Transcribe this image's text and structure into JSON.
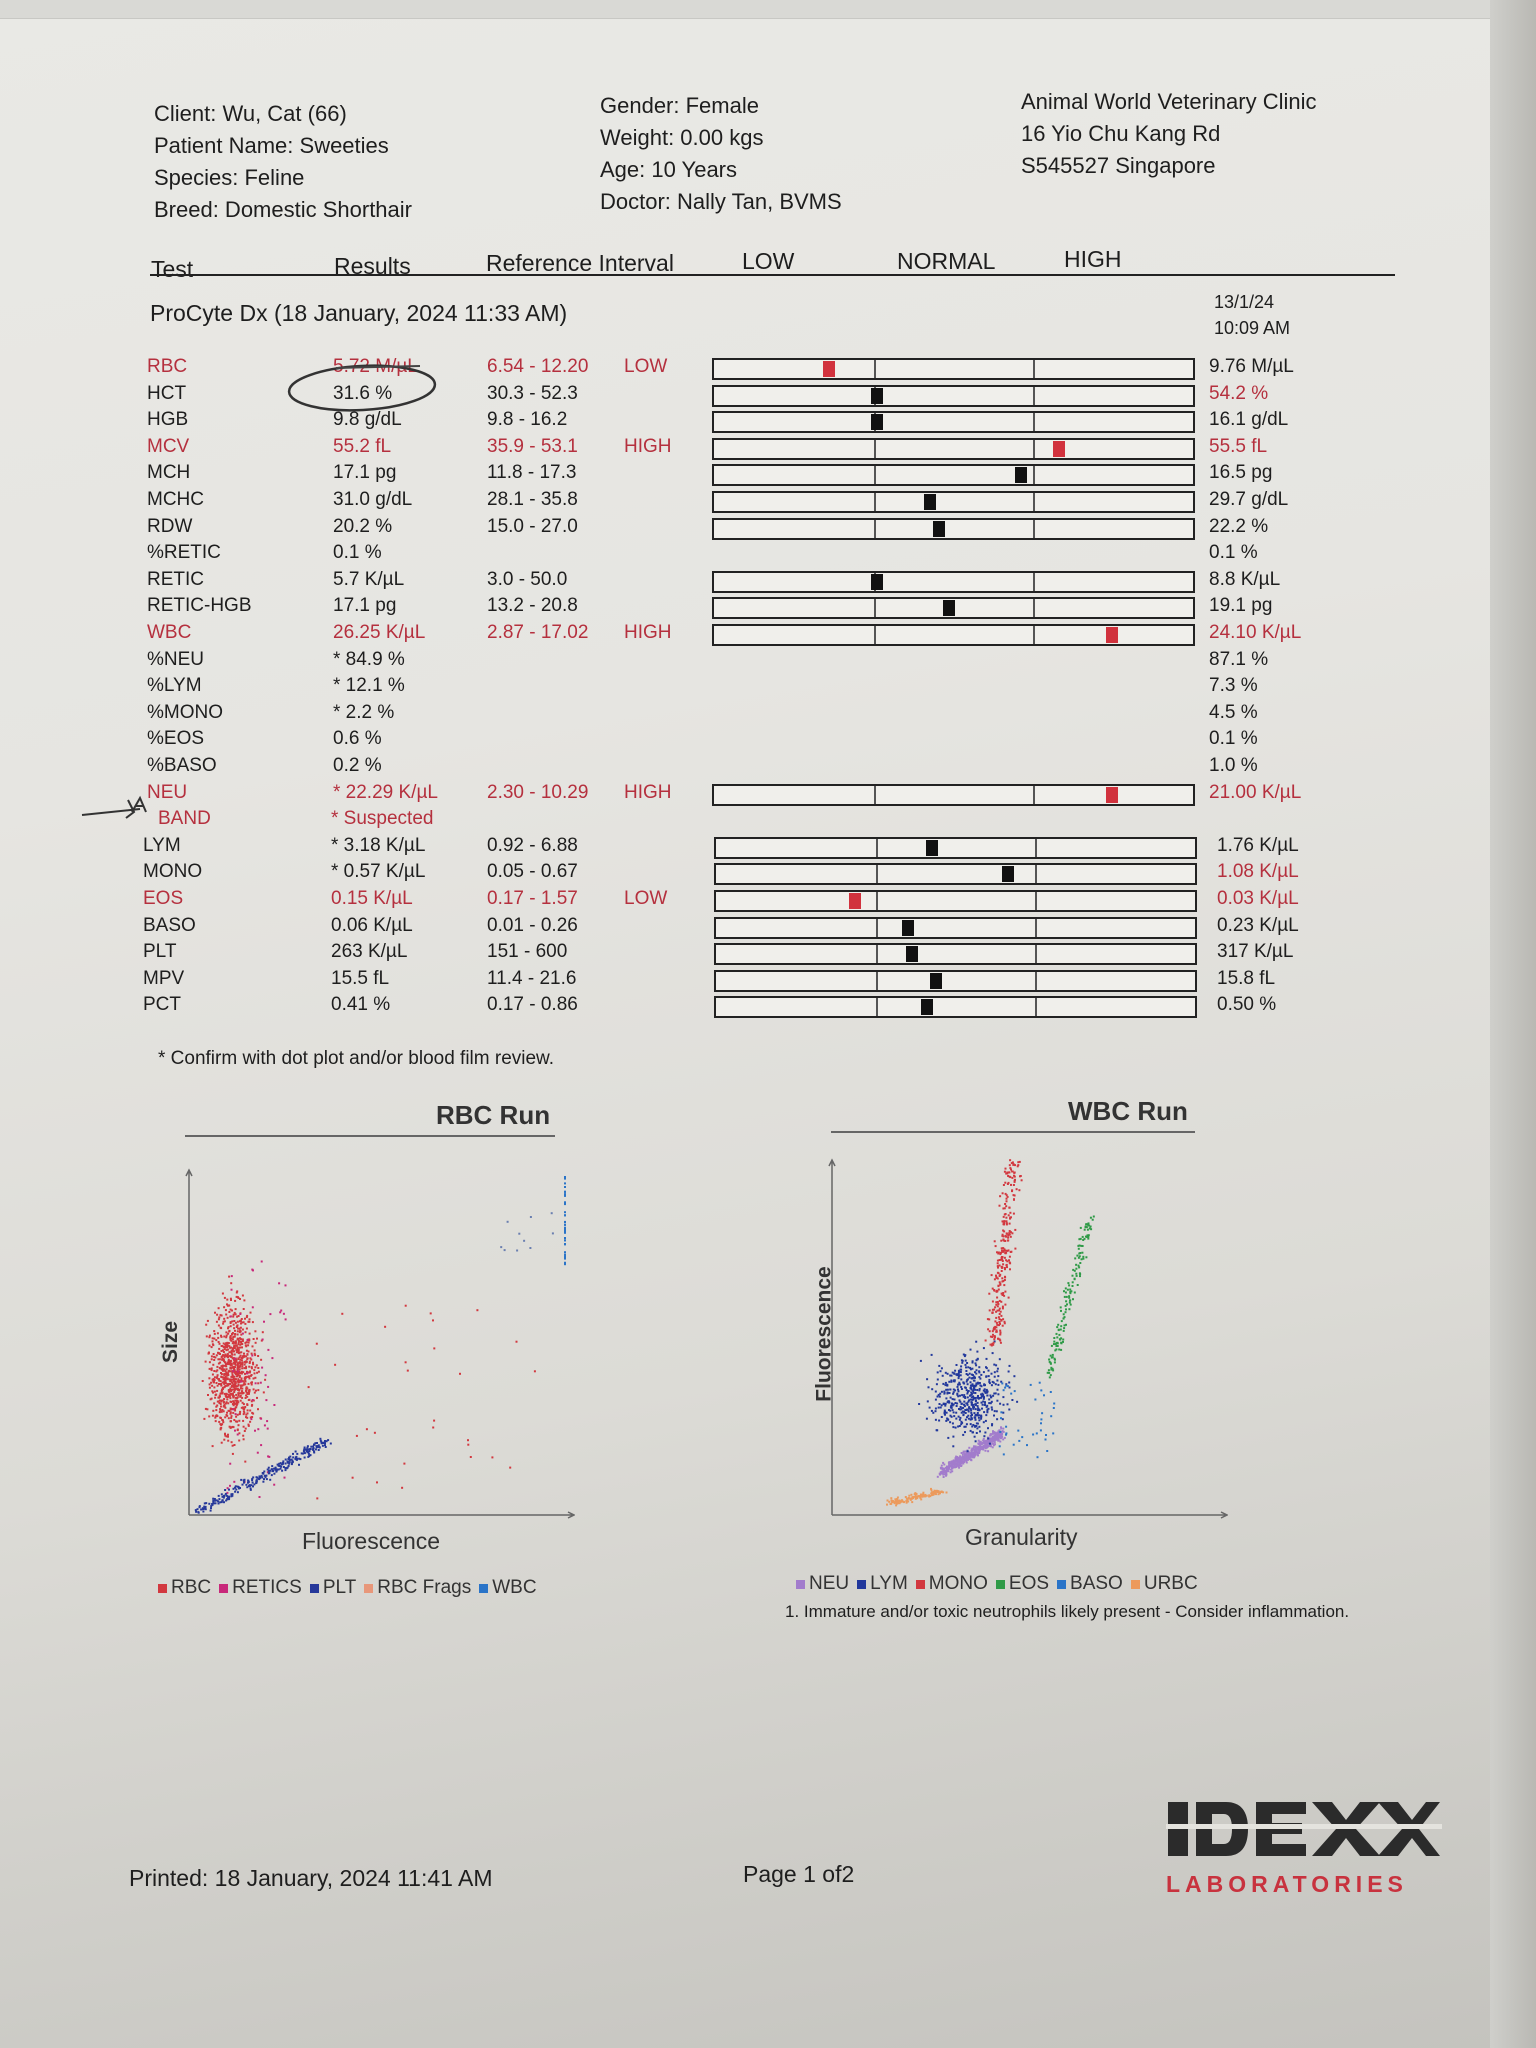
{
  "header": {
    "client": "Client: Wu, Cat (66)",
    "patient": "Patient Name: Sweeties",
    "species": "Species: Feline",
    "breed": "Breed: Domestic Shorthair",
    "gender": "Gender: Female",
    "weight": "Weight: 0.00 kgs",
    "age": "Age: 10 Years",
    "doctor": "Doctor: Nally Tan, BVMS",
    "clinic_name": "Animal World Veterinary Clinic",
    "clinic_address": "16 Yio Chu Kang Rd",
    "clinic_city": "S545527 Singapore"
  },
  "columns": {
    "test": "Test",
    "results": "Results",
    "reference": "Reference Interval",
    "low": "LOW",
    "normal": "NORMAL",
    "high": "HIGH"
  },
  "run": {
    "title": "ProCyte Dx (18 January, 2024 11:33 AM)",
    "prev_date": "13/1/24",
    "prev_time": "10:09 AM"
  },
  "rows": [
    {
      "test": "RBC",
      "result": "5.72 M/µL",
      "ref": "6.54 - 12.20",
      "flag": "LOW",
      "prev": "9.76 M/µL",
      "abn": true,
      "prev_abn": false,
      "gauge": 0.24
    },
    {
      "test": "HCT",
      "result": "31.6 %",
      "ref": "30.3 - 52.3",
      "flag": "",
      "prev": "54.2 %",
      "abn": false,
      "prev_abn": true,
      "gauge": 0.34
    },
    {
      "test": "HGB",
      "result": "9.8 g/dL",
      "ref": "9.8 - 16.2",
      "flag": "",
      "prev": "16.1 g/dL",
      "abn": false,
      "prev_abn": false,
      "gauge": 0.34
    },
    {
      "test": "MCV",
      "result": "55.2 fL",
      "ref": "35.9 - 53.1",
      "flag": "HIGH",
      "prev": "55.5 fL",
      "abn": true,
      "prev_abn": true,
      "gauge": 0.72
    },
    {
      "test": "MCH",
      "result": "17.1 pg",
      "ref": "11.8 - 17.3",
      "flag": "",
      "prev": "16.5 pg",
      "abn": false,
      "prev_abn": false,
      "gauge": 0.64
    },
    {
      "test": "MCHC",
      "result": "31.0 g/dL",
      "ref": "28.1 - 35.8",
      "flag": "",
      "prev": "29.7 g/dL",
      "abn": false,
      "prev_abn": false,
      "gauge": 0.45
    },
    {
      "test": "RDW",
      "result": "20.2 %",
      "ref": "15.0 - 27.0",
      "flag": "",
      "prev": "22.2 %",
      "abn": false,
      "prev_abn": false,
      "gauge": 0.47
    },
    {
      "test": "%RETIC",
      "result": "0.1 %",
      "ref": "",
      "flag": "",
      "prev": "0.1 %",
      "abn": false,
      "prev_abn": false,
      "gauge": null
    },
    {
      "test": "RETIC",
      "result": "5.7 K/µL",
      "ref": "3.0 - 50.0",
      "flag": "",
      "prev": "8.8 K/µL",
      "abn": false,
      "prev_abn": false,
      "gauge": 0.34
    },
    {
      "test": "RETIC-HGB",
      "result": "17.1 pg",
      "ref": "13.2 - 20.8",
      "flag": "",
      "prev": "19.1 pg",
      "abn": false,
      "prev_abn": false,
      "gauge": 0.49
    },
    {
      "test": "WBC",
      "result": "26.25 K/µL",
      "ref": "2.87 - 17.02",
      "flag": "HIGH",
      "prev": "24.10 K/µL",
      "abn": true,
      "prev_abn": true,
      "gauge": 0.83
    },
    {
      "test": "%NEU",
      "result": "* 84.9 %",
      "ref": "",
      "flag": "",
      "prev": "87.1 %",
      "abn": false,
      "prev_abn": false,
      "gauge": null
    },
    {
      "test": "%LYM",
      "result": "* 12.1 %",
      "ref": "",
      "flag": "",
      "prev": "7.3 %",
      "abn": false,
      "prev_abn": false,
      "gauge": null
    },
    {
      "test": "%MONO",
      "result": "* 2.2 %",
      "ref": "",
      "flag": "",
      "prev": "4.5 %",
      "abn": false,
      "prev_abn": false,
      "gauge": null
    },
    {
      "test": "%EOS",
      "result": "0.6 %",
      "ref": "",
      "flag": "",
      "prev": "0.1 %",
      "abn": false,
      "prev_abn": false,
      "gauge": null
    },
    {
      "test": "%BASO",
      "result": "0.2 %",
      "ref": "",
      "flag": "",
      "prev": "1.0 %",
      "abn": false,
      "prev_abn": false,
      "gauge": null
    },
    {
      "test": "NEU",
      "result": "* 22.29 K/µL",
      "ref": "2.30 - 10.29",
      "flag": "HIGH",
      "prev": "21.00 K/µL",
      "abn": true,
      "prev_abn": true,
      "gauge": 0.83
    },
    {
      "test": "BAND",
      "result": "* Suspected",
      "ref": "",
      "flag": "",
      "prev": "",
      "abn": true,
      "prev_abn": false,
      "gauge": null,
      "indent": true
    },
    {
      "test": "LYM",
      "result": "* 3.18 K/µL",
      "ref": "0.92 - 6.88",
      "flag": "",
      "prev": "1.76 K/µL",
      "abn": false,
      "prev_abn": false,
      "gauge": 0.45
    },
    {
      "test": "MONO",
      "result": "* 0.57 K/µL",
      "ref": "0.05 - 0.67",
      "flag": "",
      "prev": "1.08 K/µL",
      "abn": false,
      "prev_abn": true,
      "gauge": 0.61
    },
    {
      "test": "EOS",
      "result": "0.15 K/µL",
      "ref": "0.17 - 1.57",
      "flag": "LOW",
      "prev": "0.03 K/µL",
      "abn": true,
      "prev_abn": true,
      "gauge": 0.29
    },
    {
      "test": "BASO",
      "result": "0.06 K/µL",
      "ref": "0.01 - 0.26",
      "flag": "",
      "prev": "0.23 K/µL",
      "abn": false,
      "prev_abn": false,
      "gauge": 0.4
    },
    {
      "test": "PLT",
      "result": "263 K/µL",
      "ref": "151 - 600",
      "flag": "",
      "prev": "317 K/µL",
      "abn": false,
      "prev_abn": false,
      "gauge": 0.41
    },
    {
      "test": "MPV",
      "result": "15.5 fL",
      "ref": "11.4 - 21.6",
      "flag": "",
      "prev": "15.8 fL",
      "abn": false,
      "prev_abn": false,
      "gauge": 0.46
    },
    {
      "test": "PCT",
      "result": "0.41 %",
      "ref": "0.17 - 0.86",
      "flag": "",
      "prev": "0.50 %",
      "abn": false,
      "prev_abn": false,
      "gauge": 0.44
    }
  ],
  "footnote": "* Confirm with dot plot and/or blood film review.",
  "rbc_run": {
    "title": "RBC Run",
    "ylabel": "Size",
    "xlabel": "Fluorescence",
    "legend": [
      {
        "label": "RBC",
        "color": "#d2383f"
      },
      {
        "label": "RETICS",
        "color": "#c8287a"
      },
      {
        "label": "PLT",
        "color": "#26389a"
      },
      {
        "label": "RBC Frags",
        "color": "#e8977a"
      },
      {
        "label": "WBC",
        "color": "#2a74c8"
      }
    ]
  },
  "wbc_run": {
    "title": "WBC Run",
    "ylabel": "Fluorescence",
    "xlabel": "Granularity",
    "legend": [
      {
        "label": "NEU",
        "color": "#a27ccc"
      },
      {
        "label": "LYM",
        "color": "#22389c"
      },
      {
        "label": "MONO",
        "color": "#d2383f"
      },
      {
        "label": "EOS",
        "color": "#2f9a47"
      },
      {
        "label": "BASO",
        "color": "#2a74c8"
      },
      {
        "label": "URBC",
        "color": "#ec9a5c"
      }
    ],
    "note": "1. Immature and/or toxic neutrophils likely present - Consider inflammation."
  },
  "footer": {
    "printed": "Printed: 18 January, 2024 11:41 AM",
    "page": "Page 1 of2",
    "logo_main": "IDEXX",
    "logo_sub": "LABORATORIES"
  }
}
